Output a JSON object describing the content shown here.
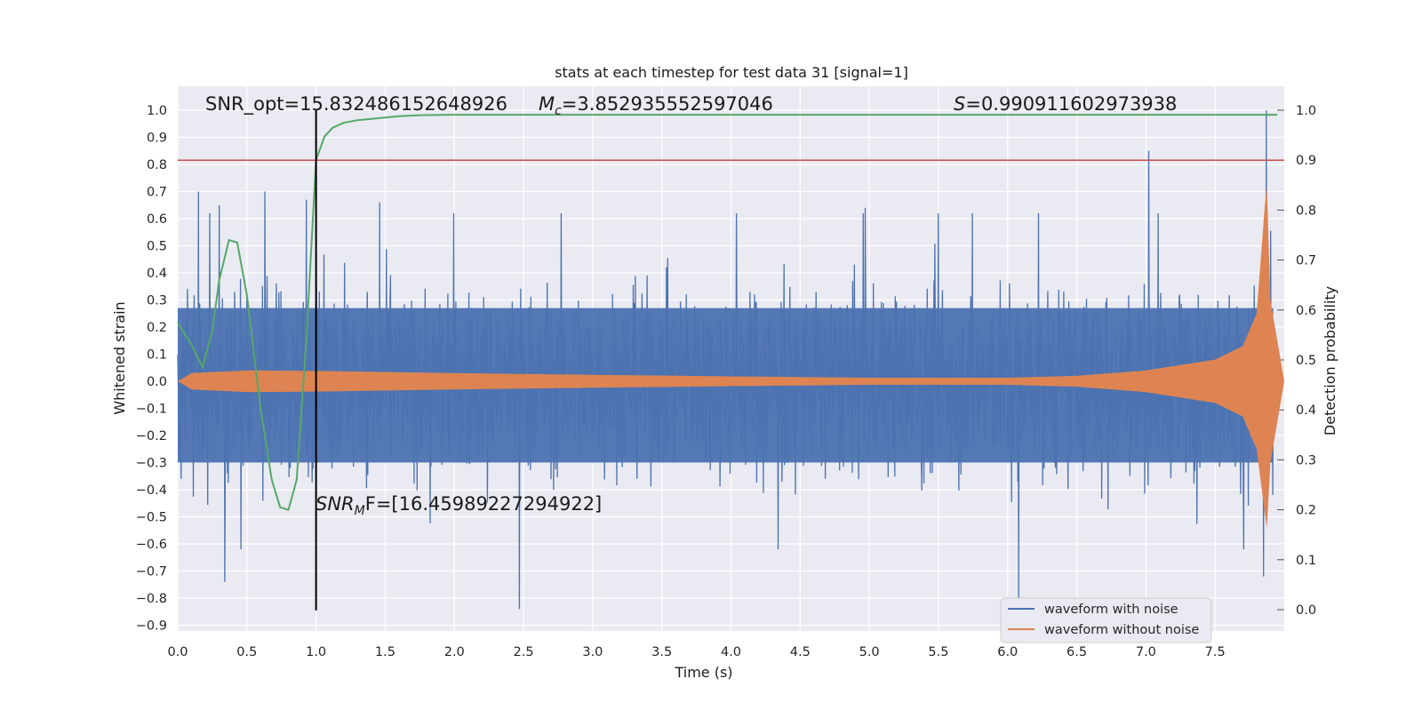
{
  "chart_data": {
    "type": "line",
    "title": "stats at each timestep for test data 31 [signal=1]",
    "xlabel": "Time (s)",
    "ylabel": "Whitened strain",
    "y2label": "Detection probability",
    "xlim": [
      0.0,
      8.0
    ],
    "ylim": [
      -0.93,
      1.0
    ],
    "y2lim": [
      -0.045,
      1.0
    ],
    "xticks": [
      "0.0",
      "0.5",
      "1.0",
      "1.5",
      "2.0",
      "2.5",
      "3.0",
      "3.5",
      "4.0",
      "4.5",
      "5.0",
      "5.5",
      "6.0",
      "6.5",
      "7.0",
      "7.5"
    ],
    "yticks": [
      "1.0",
      "0.9",
      "0.8",
      "0.7",
      "0.6",
      "0.5",
      "0.4",
      "0.3",
      "0.2",
      "0.1",
      "0.0",
      "−0.1",
      "−0.2",
      "−0.3",
      "−0.4",
      "−0.5",
      "−0.6",
      "−0.7",
      "−0.8",
      "−0.9"
    ],
    "y2ticks": [
      "1.0",
      "0.9",
      "0.8",
      "0.7",
      "0.6",
      "0.5",
      "0.4",
      "0.3",
      "0.2",
      "0.1",
      "0.0"
    ],
    "grid": true,
    "legend_position": "bottom-right",
    "series": [
      {
        "name": "waveform with noise",
        "color": "#4c72b0",
        "description_values": "dense noisy strain, mostly within ±0.45, peaks up to 1.0 near t=7.87",
        "peaks": [
          {
            "t": 0.15,
            "y": 0.7
          },
          {
            "t": 0.3,
            "y": 0.65
          },
          {
            "t": 0.63,
            "y": 0.7
          },
          {
            "t": 0.93,
            "y": 0.67
          },
          {
            "t": 1.46,
            "y": 0.66
          },
          {
            "t": 4.97,
            "y": 0.64
          },
          {
            "t": 7.02,
            "y": 0.85
          },
          {
            "t": 7.87,
            "y": 1.0
          },
          {
            "t": 0.34,
            "y": -0.74
          },
          {
            "t": 2.47,
            "y": -0.84
          },
          {
            "t": 6.08,
            "y": -0.8
          },
          {
            "t": 7.85,
            "y": -0.72
          }
        ]
      },
      {
        "name": "waveform without noise",
        "color": "#dd8452",
        "envelope": [
          {
            "t": 0.0,
            "a": 0.0
          },
          {
            "t": 0.1,
            "a": 0.03
          },
          {
            "t": 0.5,
            "a": 0.04
          },
          {
            "t": 1.0,
            "a": 0.038
          },
          {
            "t": 2.0,
            "a": 0.03
          },
          {
            "t": 3.0,
            "a": 0.024
          },
          {
            "t": 4.0,
            "a": 0.018
          },
          {
            "t": 5.0,
            "a": 0.013
          },
          {
            "t": 6.0,
            "a": 0.013
          },
          {
            "t": 6.5,
            "a": 0.02
          },
          {
            "t": 7.0,
            "a": 0.04
          },
          {
            "t": 7.5,
            "a": 0.08
          },
          {
            "t": 7.7,
            "a": 0.13
          },
          {
            "t": 7.8,
            "a": 0.25
          },
          {
            "t": 7.86,
            "a": 0.65
          },
          {
            "t": 7.875,
            "a": 0.72
          },
          {
            "t": 7.9,
            "a": 0.3
          },
          {
            "t": 8.0,
            "a": 0.0
          }
        ]
      },
      {
        "color": "#55a868",
        "axis": "right",
        "x": [
          0.0,
          0.1,
          0.18,
          0.25,
          0.3,
          0.37,
          0.43,
          0.5,
          0.6,
          0.68,
          0.74,
          0.8,
          0.86,
          0.93,
          1.0,
          1.06,
          1.12,
          1.2,
          1.3,
          1.45,
          1.6,
          1.75,
          2.0,
          3.0,
          4.0,
          5.0,
          6.0,
          7.0,
          7.95
        ],
        "y": [
          0.575,
          0.53,
          0.485,
          0.56,
          0.66,
          0.74,
          0.735,
          0.63,
          0.4,
          0.26,
          0.205,
          0.2,
          0.26,
          0.54,
          0.9,
          0.947,
          0.965,
          0.975,
          0.98,
          0.984,
          0.988,
          0.99,
          0.991,
          0.991,
          0.991,
          0.991,
          0.991,
          0.991,
          0.991
        ]
      }
    ],
    "threshold": {
      "axis": "right",
      "y": 0.9,
      "color": "#c44e52"
    },
    "vline": {
      "x": 1.0,
      "y_from": -0.845,
      "y_to": 1.0,
      "color": "#000000"
    },
    "annotations": {
      "snr_opt": "SNR_opt=15.832486152648926",
      "mc_symbol": "M",
      "mc_sub": "c",
      "mc_value": "=3.852935552597046",
      "s_symbol": "S",
      "s_value": "=0.990911602973938",
      "snr_mf_symbol": "SNR",
      "snr_mf_sub": "M",
      "snr_mf_tail": "F=[16.45989227294922]"
    }
  }
}
